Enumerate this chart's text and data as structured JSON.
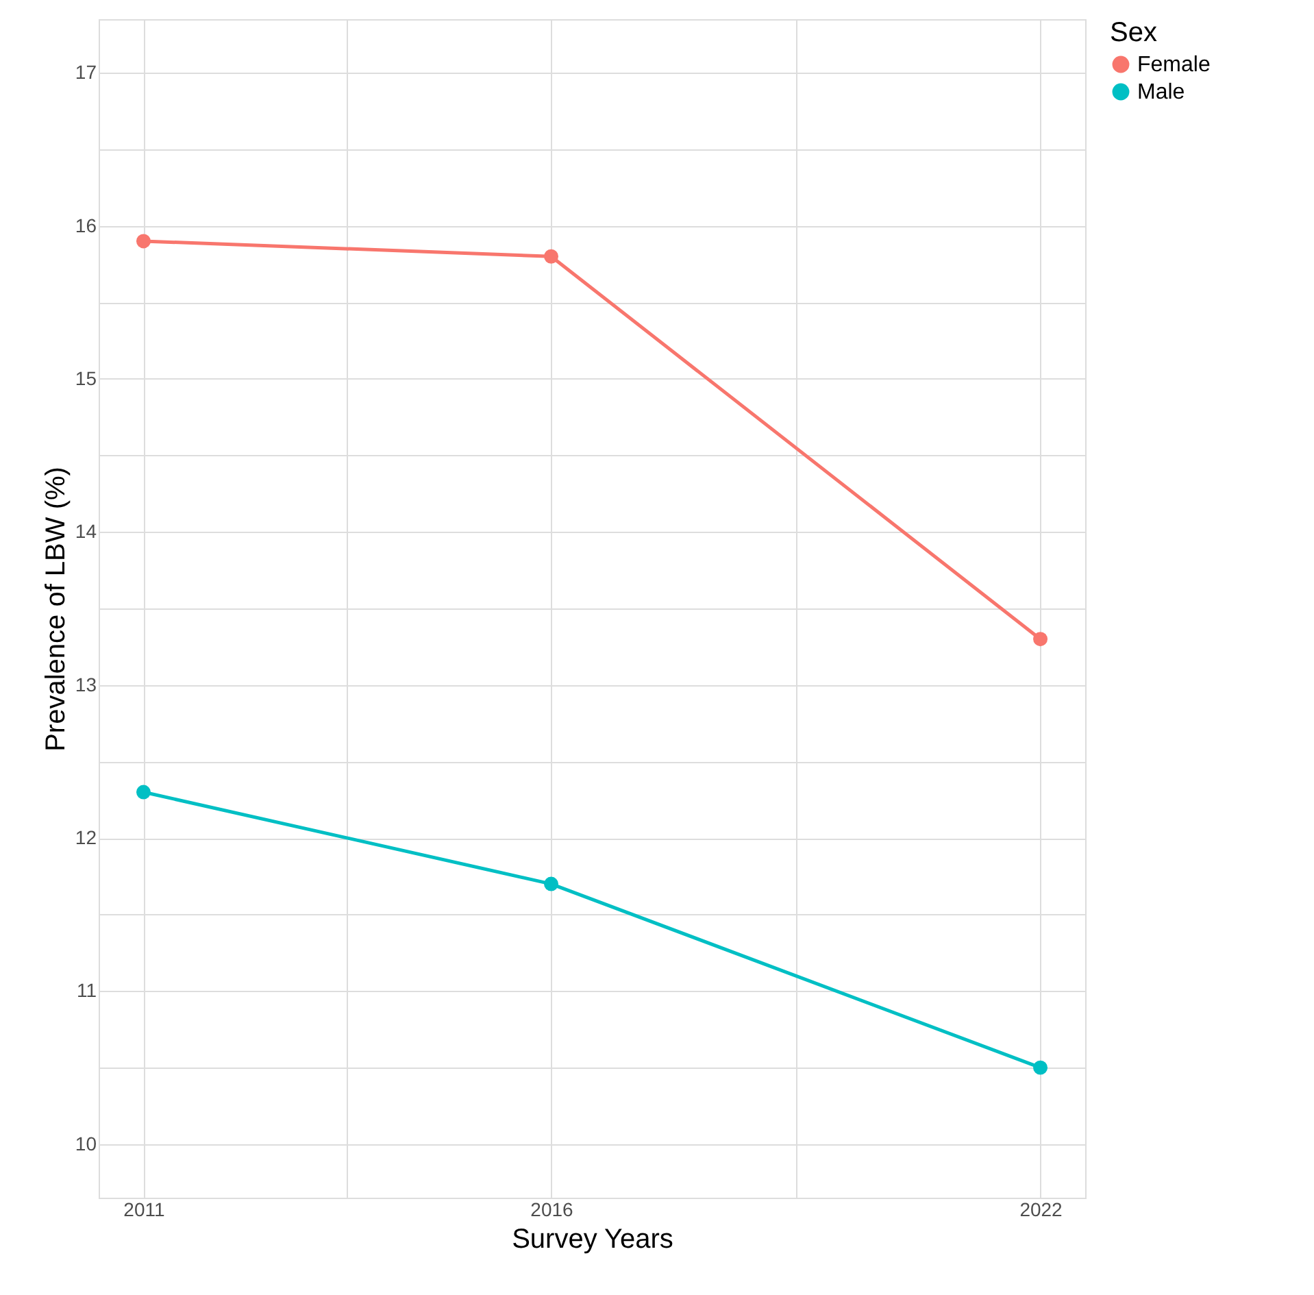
{
  "chart_data": {
    "type": "line",
    "xlabel": "Survey Years",
    "ylabel": "Prevalence of LBW (%)",
    "legend_title": "Sex",
    "x": [
      2011,
      2016,
      2022
    ],
    "series": [
      {
        "name": "Female",
        "color": "#f8766d",
        "values": [
          15.9,
          15.8,
          13.3
        ]
      },
      {
        "name": "Male",
        "color": "#00bfc4",
        "values": [
          12.3,
          11.7,
          10.5
        ]
      }
    ],
    "xlim": [
      2010.45,
      2022.55
    ],
    "xticks": [
      2011,
      {
        "value": 2013.5,
        "label": null
      },
      2016,
      {
        "value": 2019,
        "label": null
      },
      2022
    ],
    "ylim": [
      9.65,
      17.35
    ],
    "yticks": [
      10,
      {
        "value": 10.5,
        "label": null
      },
      11,
      {
        "value": 11.5,
        "label": null
      },
      12,
      {
        "value": 12.5,
        "label": null
      },
      13,
      {
        "value": 13.5,
        "label": null
      },
      14,
      {
        "value": 14.5,
        "label": null
      },
      15,
      {
        "value": 15.5,
        "label": null
      },
      16,
      {
        "value": 16.5,
        "label": null
      },
      17
    ],
    "grid": true,
    "legend": "right",
    "marker": "circle",
    "line_style": "solid"
  }
}
